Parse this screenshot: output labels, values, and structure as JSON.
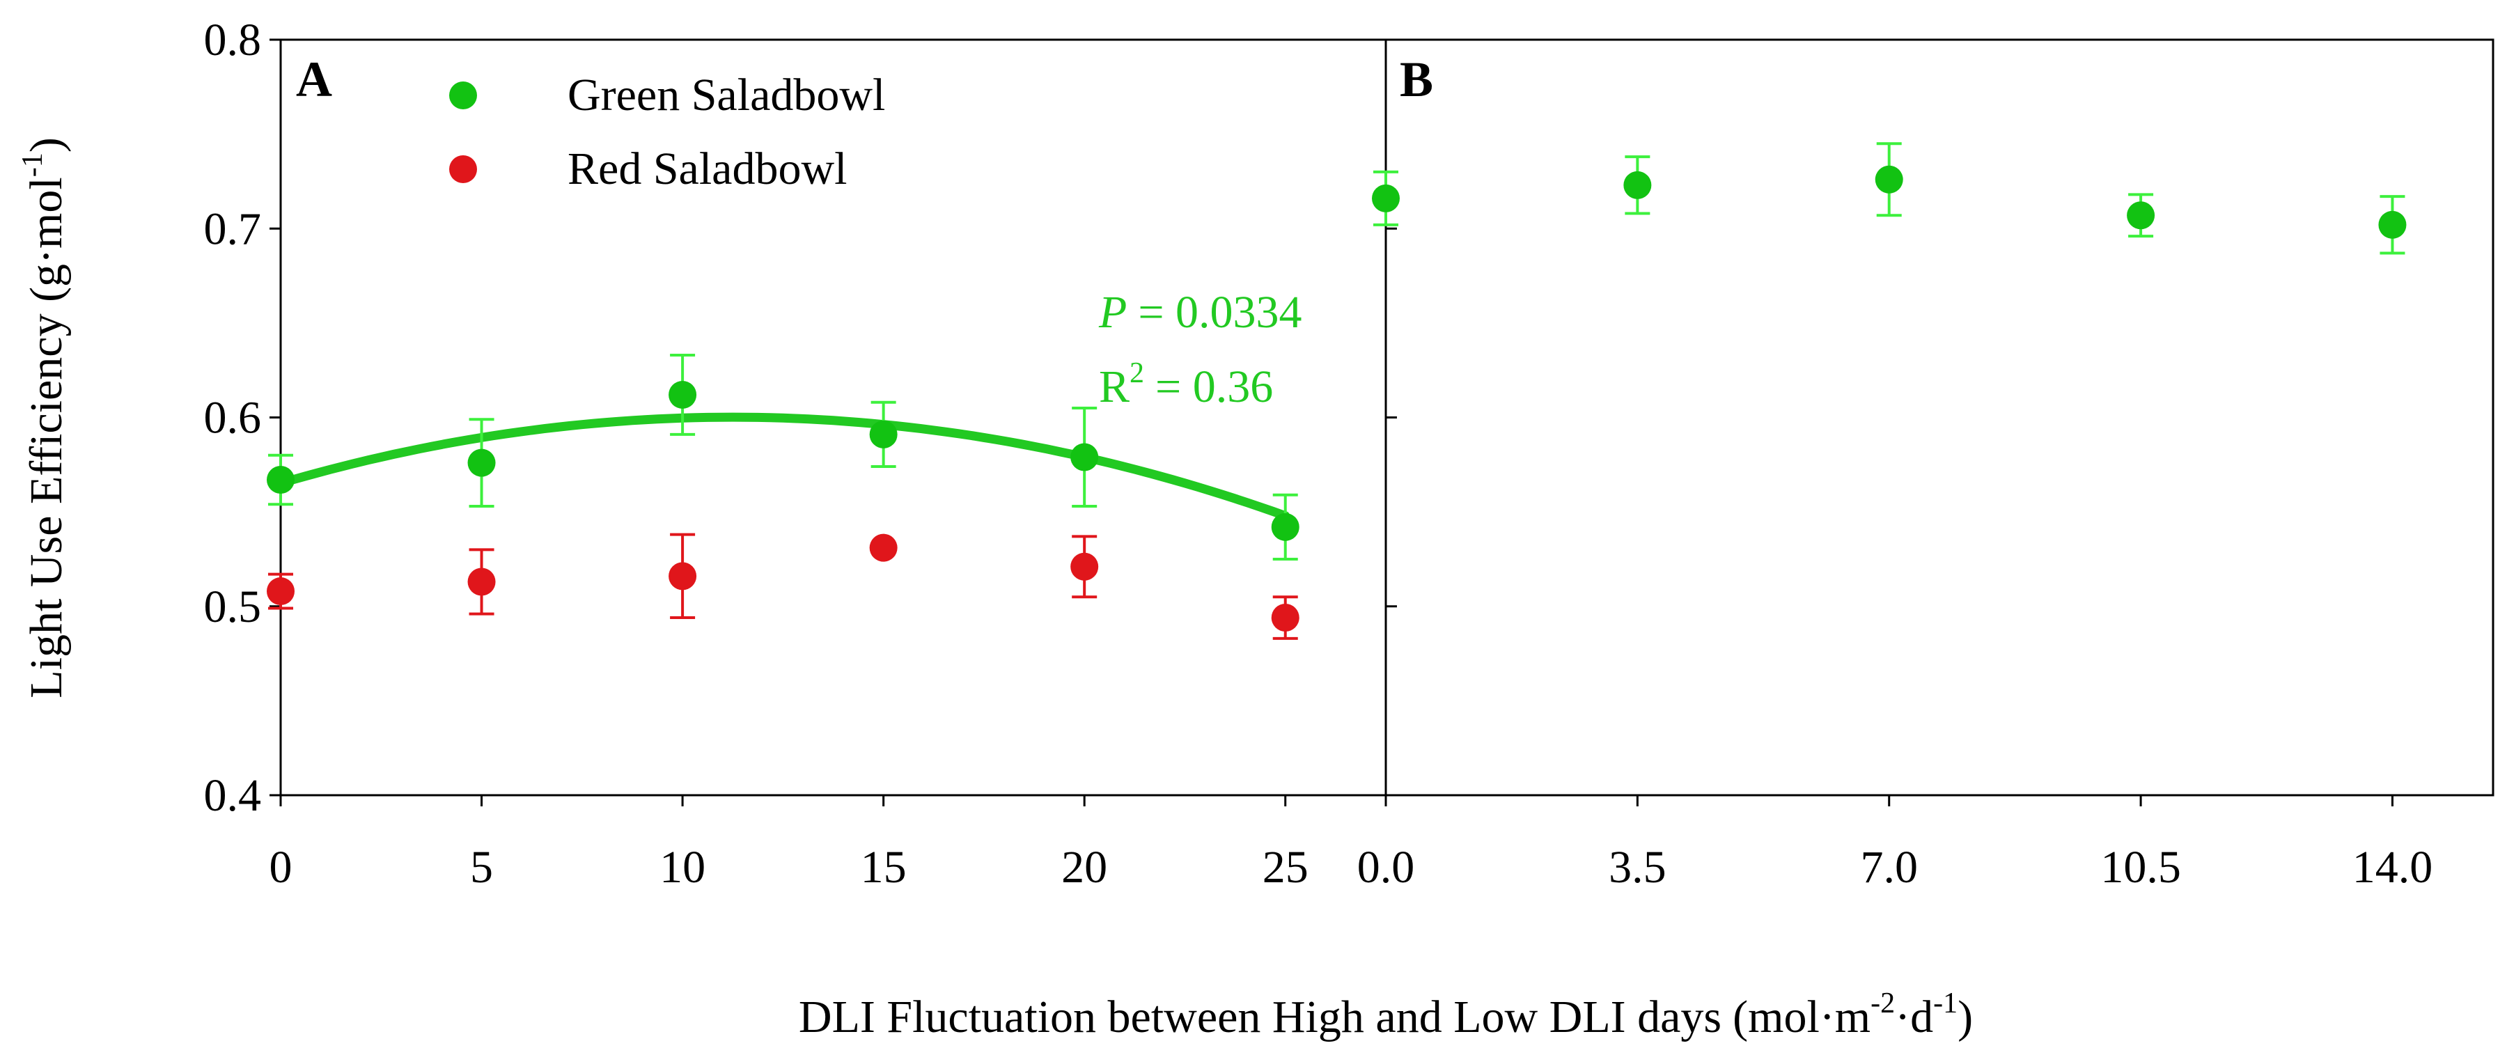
{
  "figure": {
    "shared_xlabel": "DLI Fluctuation between High and Low DLI days",
    "shared_xlabel_units_open": "(mol·m",
    "shared_xlabel_units_exp1": "-2",
    "shared_xlabel_units_mid": "·d",
    "shared_xlabel_units_exp2": "-1",
    "shared_xlabel_units_close": ")",
    "shared_ylabel": "Light Use Efficiency (g·mol",
    "shared_ylabel_exp": "-1",
    "shared_ylabel_close": ")"
  },
  "colors": {
    "green_marker": "#12c212",
    "green_errorbar": "#3df03d",
    "green_fit": "#22c922",
    "red_marker": "#e0161b",
    "annotation": "#22c922",
    "axis": "#000000"
  },
  "chart_data": [
    {
      "panel": "A",
      "type": "scatter",
      "xlim": [
        0,
        27.5
      ],
      "ylim": [
        0.4,
        0.8
      ],
      "x_ticks": [
        0,
        5,
        10,
        15,
        20,
        25
      ],
      "x_tick_labels": [
        "0",
        "5",
        "10",
        "15",
        "20",
        "25"
      ],
      "y_ticks": [
        0.4,
        0.5,
        0.6,
        0.7,
        0.8
      ],
      "y_tick_labels": [
        "0.4",
        "0.5",
        "0.6",
        "0.7",
        "0.8"
      ],
      "grid": false,
      "legend": {
        "position": "top-left",
        "entries": [
          "Green Saladbowl",
          "Red Saladbowl"
        ]
      },
      "series": [
        {
          "name": "Green Saladbowl",
          "color": "#12c212",
          "x": [
            0,
            5,
            10,
            15,
            20,
            25
          ],
          "y": [
            0.567,
            0.576,
            0.612,
            0.591,
            0.579,
            0.542
          ],
          "err": [
            0.013,
            0.023,
            0.021,
            0.017,
            0.026,
            0.017
          ]
        },
        {
          "name": "Red Saladbowl",
          "color": "#e0161b",
          "x": [
            0,
            5,
            10,
            15,
            20,
            25
          ],
          "y": [
            0.508,
            0.513,
            0.516,
            0.531,
            0.521,
            0.494
          ],
          "err": [
            0.009,
            0.017,
            0.022,
            0.0,
            0.016,
            0.011
          ]
        }
      ],
      "fit": {
        "series": "Green Saladbowl",
        "type": "quadratic",
        "coefficients": [
          0.5652,
          0.00621,
          -0.000276
        ],
        "x_range": [
          0,
          25
        ]
      },
      "annotation": {
        "p_label": "P",
        "p_value": "= 0.0334",
        "r2_base": "R",
        "r2_exp": "2",
        "r2_value": "= 0.36"
      }
    },
    {
      "panel": "B",
      "type": "scatter",
      "xlim": [
        0,
        15.4
      ],
      "ylim": [
        0.4,
        0.8
      ],
      "x_ticks": [
        0,
        3.5,
        7,
        10.5,
        14
      ],
      "x_tick_labels": [
        "0.0",
        "3.5",
        "7.0",
        "10.5",
        "14.0"
      ],
      "y_ticks": [
        0.4,
        0.5,
        0.6,
        0.7,
        0.8
      ],
      "grid": false,
      "series": [
        {
          "name": "Green Saladbowl",
          "color": "#12c212",
          "x": [
            0,
            3.5,
            7,
            10.5,
            14
          ],
          "y": [
            0.716,
            0.723,
            0.726,
            0.707,
            0.702
          ],
          "err": [
            0.014,
            0.015,
            0.019,
            0.011,
            0.015
          ]
        }
      ]
    }
  ]
}
